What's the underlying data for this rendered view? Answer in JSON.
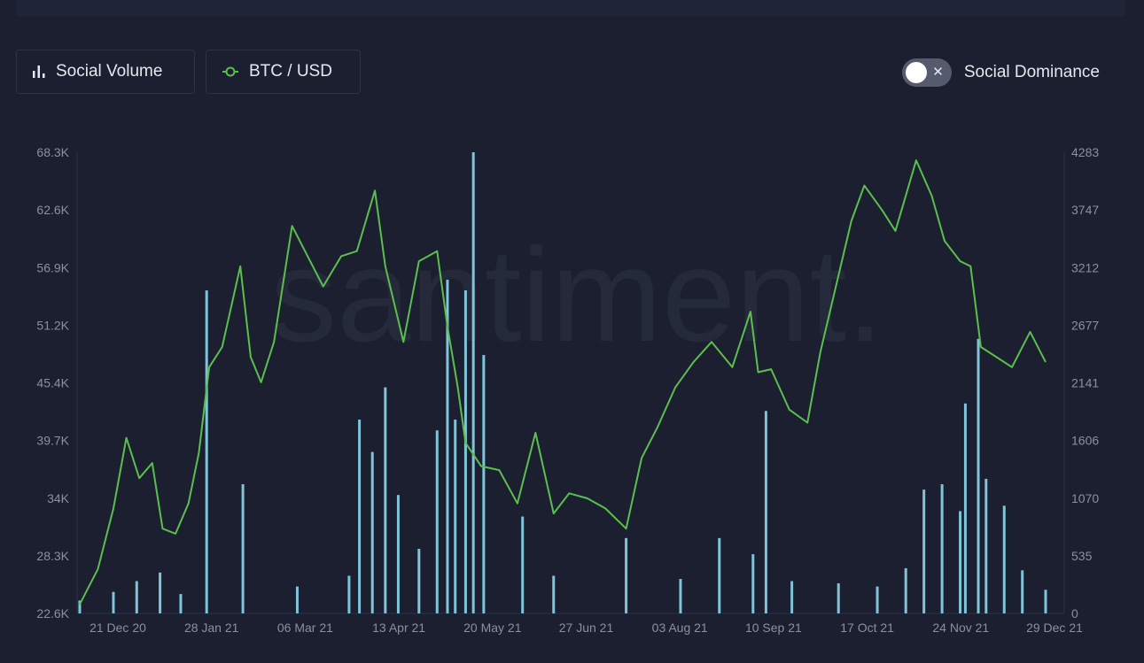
{
  "controls": {
    "social_volume_label": "Social Volume",
    "btc_label": "BTC / USD",
    "social_dominance_label": "Social Dominance",
    "social_dominance_enabled": false
  },
  "watermark": "santiment.",
  "colors": {
    "background": "#1b1f2f",
    "price_line": "#5bbf4e",
    "volume_bars": "#7fc4d8",
    "axis_text": "#8a90a4"
  },
  "chart_data": {
    "type": "bar+line",
    "legend": "top-left",
    "grid": false,
    "x_ticks": [
      "21 Dec 20",
      "28 Jan 21",
      "06 Mar 21",
      "13 Apr 21",
      "20 May 21",
      "27 Jun 21",
      "03 Aug 21",
      "10 Sep 21",
      "17 Oct 21",
      "24 Nov 21",
      "29 Dec 21"
    ],
    "x_range": [
      "2020-12-21",
      "2021-12-29"
    ],
    "left_axis": {
      "series": "BTC / USD",
      "ticks": [
        "68.3K",
        "62.6K",
        "56.9K",
        "51.2K",
        "45.4K",
        "39.7K",
        "34K",
        "28.3K",
        "22.6K"
      ],
      "range": [
        22600,
        68300
      ]
    },
    "right_axis": {
      "series": "Social Volume",
      "ticks": [
        "4283",
        "3747",
        "3212",
        "2677",
        "2141",
        "1606",
        "1070",
        "535",
        "0"
      ],
      "range": [
        0,
        4283
      ]
    },
    "series": [
      {
        "name": "BTC / USD",
        "type": "line",
        "x": [
          "2020-12-21",
          "2020-12-28",
          "2021-01-03",
          "2021-01-08",
          "2021-01-13",
          "2021-01-18",
          "2021-01-22",
          "2021-01-27",
          "2021-02-01",
          "2021-02-05",
          "2021-02-09",
          "2021-02-14",
          "2021-02-21",
          "2021-02-25",
          "2021-03-01",
          "2021-03-06",
          "2021-03-13",
          "2021-03-18",
          "2021-03-25",
          "2021-04-01",
          "2021-04-07",
          "2021-04-14",
          "2021-04-18",
          "2021-04-25",
          "2021-05-01",
          "2021-05-08",
          "2021-05-12",
          "2021-05-16",
          "2021-05-19",
          "2021-05-25",
          "2021-06-01",
          "2021-06-08",
          "2021-06-15",
          "2021-06-22",
          "2021-06-28",
          "2021-07-05",
          "2021-07-12",
          "2021-07-20",
          "2021-07-26",
          "2021-08-01",
          "2021-08-08",
          "2021-08-15",
          "2021-08-22",
          "2021-08-30",
          "2021-09-06",
          "2021-09-09",
          "2021-09-14",
          "2021-09-21",
          "2021-09-28",
          "2021-10-03",
          "2021-10-09",
          "2021-10-15",
          "2021-10-20",
          "2021-10-27",
          "2021-11-01",
          "2021-11-09",
          "2021-11-15",
          "2021-11-20",
          "2021-11-26",
          "2021-11-30",
          "2021-12-04",
          "2021-12-10",
          "2021-12-16",
          "2021-12-23",
          "2021-12-29"
        ],
        "y": [
          23500,
          27000,
          33000,
          40000,
          36000,
          37500,
          31000,
          30500,
          33500,
          38500,
          47000,
          49000,
          57000,
          48000,
          45500,
          49500,
          61000,
          58500,
          55000,
          58000,
          58500,
          64500,
          57000,
          49500,
          57500,
          58500,
          51000,
          45000,
          39500,
          37200,
          36800,
          33500,
          40500,
          32500,
          34500,
          34000,
          33000,
          31000,
          38000,
          41000,
          45000,
          47500,
          49500,
          47000,
          52500,
          46500,
          46800,
          42800,
          41500,
          48500,
          55000,
          61500,
          65000,
          62500,
          60500,
          67500,
          64000,
          59500,
          57500,
          57000,
          49000,
          48000,
          47000,
          50500,
          47500
        ]
      },
      {
        "name": "Social Volume",
        "type": "bar",
        "x": [
          "2020-12-21",
          "2021-01-03",
          "2021-01-12",
          "2021-01-21",
          "2021-01-29",
          "2021-02-08",
          "2021-02-22",
          "2021-03-15",
          "2021-04-04",
          "2021-04-08",
          "2021-04-13",
          "2021-04-18",
          "2021-04-23",
          "2021-05-01",
          "2021-05-08",
          "2021-05-12",
          "2021-05-15",
          "2021-05-19",
          "2021-05-22",
          "2021-05-26",
          "2021-06-10",
          "2021-06-22",
          "2021-07-20",
          "2021-08-10",
          "2021-08-25",
          "2021-09-07",
          "2021-09-12",
          "2021-09-22",
          "2021-10-10",
          "2021-10-25",
          "2021-11-05",
          "2021-11-12",
          "2021-11-19",
          "2021-11-26",
          "2021-11-28",
          "2021-12-03",
          "2021-12-06",
          "2021-12-13",
          "2021-12-20",
          "2021-12-29"
        ],
        "y": [
          120,
          200,
          300,
          380,
          180,
          3000,
          1200,
          250,
          350,
          1800,
          1500,
          2100,
          1100,
          600,
          1700,
          3100,
          1800,
          3000,
          4283,
          2400,
          900,
          350,
          700,
          320,
          700,
          550,
          1880,
          300,
          280,
          250,
          420,
          1150,
          1200,
          950,
          1950,
          2550,
          1250,
          1000,
          400,
          220
        ]
      }
    ]
  }
}
